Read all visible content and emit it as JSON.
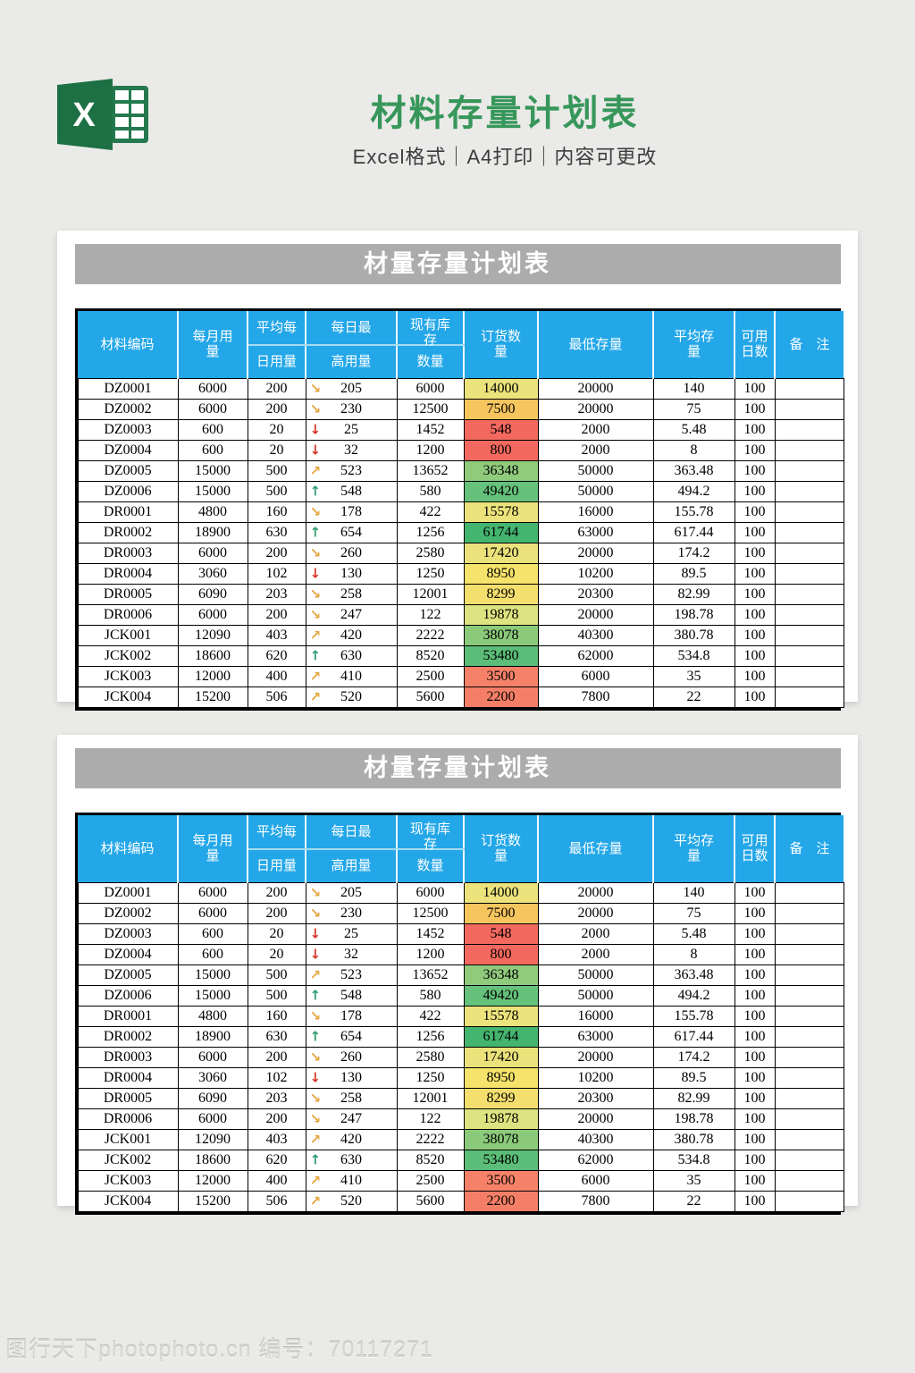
{
  "page": {
    "title": "材料存量计划表",
    "subtitle": "Excel格式｜A4打印｜内容可更改",
    "footer_watermark": "图行天下photophoto.cn 编号：70117271"
  },
  "colors": {
    "page_bg": "#EAEAE8",
    "title_green": "#37975B",
    "logo_green_dark": "#1D7044",
    "logo_green_grid": "#24794E",
    "sheet_bar_bg": "#ACACAC",
    "table_header_bg": "#23A7E8",
    "arrow_up": "#2F9E72",
    "arrow_down": "#D6392B",
    "arrow_diagonal": "#E4A63F"
  },
  "logo": {
    "letter": "X"
  },
  "sheet": {
    "bar_title": "材量存量计划表",
    "columns": {
      "material_code": "材料编码",
      "monthly_usage": "每月用\n量",
      "avg_daily_top": "平均每",
      "avg_daily_bottom": "日用量",
      "daily_max_top": "每日最",
      "daily_max_bottom": "高用量",
      "stock_top": "现有库\n存",
      "stock_bottom": "数量",
      "order_qty": "订货数\n量",
      "min_stock": "最低存量",
      "avg_stock": "平均存\n量",
      "avail_days": "可用\n日数",
      "remark": "备　注"
    },
    "rows": [
      {
        "code": "DZ0001",
        "monthly": "6000",
        "avg_daily": "200",
        "trend": "dr",
        "daily_max": "205",
        "stock": "6000",
        "order": "14000",
        "order_bg": "#EDE37C",
        "min_stock": "20000",
        "avg_stock": "140",
        "avail_days": "100",
        "remark": ""
      },
      {
        "code": "DZ0002",
        "monthly": "6000",
        "avg_daily": "200",
        "trend": "dr",
        "daily_max": "230",
        "stock": "12500",
        "order": "7500",
        "order_bg": "#F6C55E",
        "min_stock": "20000",
        "avg_stock": "75",
        "avail_days": "100",
        "remark": ""
      },
      {
        "code": "DZ0003",
        "monthly": "600",
        "avg_daily": "20",
        "trend": "d",
        "daily_max": "25",
        "stock": "1452",
        "order": "548",
        "order_bg": "#F4695F",
        "min_stock": "2000",
        "avg_stock": "5.48",
        "avail_days": "100",
        "remark": ""
      },
      {
        "code": "DZ0004",
        "monthly": "600",
        "avg_daily": "20",
        "trend": "d",
        "daily_max": "32",
        "stock": "1200",
        "order": "800",
        "order_bg": "#F4695F",
        "min_stock": "2000",
        "avg_stock": "8",
        "avail_days": "100",
        "remark": ""
      },
      {
        "code": "DZ0005",
        "monthly": "15000",
        "avg_daily": "500",
        "trend": "ur",
        "daily_max": "523",
        "stock": "13652",
        "order": "36348",
        "order_bg": "#90CB7C",
        "min_stock": "50000",
        "avg_stock": "363.48",
        "avail_days": "100",
        "remark": ""
      },
      {
        "code": "DZ0006",
        "monthly": "15000",
        "avg_daily": "500",
        "trend": "u",
        "daily_max": "548",
        "stock": "580",
        "order": "49420",
        "order_bg": "#66C17B",
        "min_stock": "50000",
        "avg_stock": "494.2",
        "avail_days": "100",
        "remark": ""
      },
      {
        "code": "DR0001",
        "monthly": "4800",
        "avg_daily": "160",
        "trend": "dr",
        "daily_max": "178",
        "stock": "422",
        "order": "15578",
        "order_bg": "#EDE37C",
        "min_stock": "16000",
        "avg_stock": "155.78",
        "avail_days": "100",
        "remark": ""
      },
      {
        "code": "DR0002",
        "monthly": "18900",
        "avg_daily": "630",
        "trend": "u",
        "daily_max": "654",
        "stock": "1256",
        "order": "61744",
        "order_bg": "#44B56F",
        "min_stock": "63000",
        "avg_stock": "617.44",
        "avail_days": "100",
        "remark": ""
      },
      {
        "code": "DR0003",
        "monthly": "6000",
        "avg_daily": "200",
        "trend": "dr",
        "daily_max": "260",
        "stock": "2580",
        "order": "17420",
        "order_bg": "#EBE27B",
        "min_stock": "20000",
        "avg_stock": "174.2",
        "avail_days": "100",
        "remark": ""
      },
      {
        "code": "DR0004",
        "monthly": "3060",
        "avg_daily": "102",
        "trend": "d",
        "daily_max": "130",
        "stock": "1250",
        "order": "8950",
        "order_bg": "#F5E36B",
        "min_stock": "10200",
        "avg_stock": "89.5",
        "avail_days": "100",
        "remark": ""
      },
      {
        "code": "DR0005",
        "monthly": "6090",
        "avg_daily": "203",
        "trend": "dr",
        "daily_max": "258",
        "stock": "12001",
        "order": "8299",
        "order_bg": "#F4DF6E",
        "min_stock": "20300",
        "avg_stock": "82.99",
        "avail_days": "100",
        "remark": ""
      },
      {
        "code": "DR0006",
        "monthly": "6000",
        "avg_daily": "200",
        "trend": "dr",
        "daily_max": "247",
        "stock": "122",
        "order": "19878",
        "order_bg": "#DDE380",
        "min_stock": "20000",
        "avg_stock": "198.78",
        "avail_days": "100",
        "remark": ""
      },
      {
        "code": "JCK001",
        "monthly": "12090",
        "avg_daily": "403",
        "trend": "ur",
        "daily_max": "420",
        "stock": "2222",
        "order": "38078",
        "order_bg": "#8CCA7B",
        "min_stock": "40300",
        "avg_stock": "380.78",
        "avail_days": "100",
        "remark": ""
      },
      {
        "code": "JCK002",
        "monthly": "18600",
        "avg_daily": "620",
        "trend": "u",
        "daily_max": "630",
        "stock": "8520",
        "order": "53480",
        "order_bg": "#5BBD77",
        "min_stock": "62000",
        "avg_stock": "534.8",
        "avail_days": "100",
        "remark": ""
      },
      {
        "code": "JCK003",
        "monthly": "12000",
        "avg_daily": "400",
        "trend": "ur",
        "daily_max": "410",
        "stock": "2500",
        "order": "3500",
        "order_bg": "#F58268",
        "min_stock": "6000",
        "avg_stock": "35",
        "avail_days": "100",
        "remark": ""
      },
      {
        "code": "JCK004",
        "monthly": "15200",
        "avg_daily": "506",
        "trend": "ur",
        "daily_max": "520",
        "stock": "5600",
        "order": "2200",
        "order_bg": "#F57F66",
        "min_stock": "7800",
        "avg_stock": "22",
        "avail_days": "100",
        "remark": ""
      }
    ]
  }
}
